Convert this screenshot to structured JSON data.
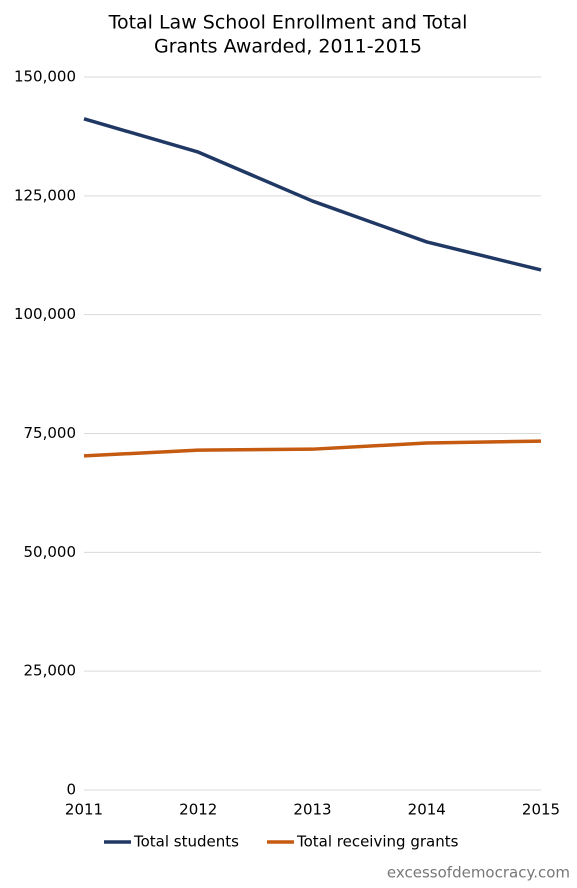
{
  "chart_data": {
    "type": "line",
    "title": [
      "Total Law School Enrollment and Total",
      "Grants Awarded, 2011-2015"
    ],
    "categories": [
      "2011",
      "2012",
      "2013",
      "2014",
      "2015"
    ],
    "series": [
      {
        "name": "Total students",
        "color": "#203864",
        "values": [
          141200,
          134200,
          123900,
          115300,
          109400
        ]
      },
      {
        "name": "Total receiving grants",
        "color": "#c55a11",
        "values": [
          70300,
          71500,
          71700,
          73000,
          73400
        ]
      }
    ],
    "ylim": [
      0,
      150000
    ],
    "yticks": [
      0,
      {
        "value": 25000,
        "label": "25,000"
      },
      {
        "value": 50000,
        "label": "50,000"
      },
      {
        "value": 75000,
        "label": "75,000"
      },
      {
        "value": 100000,
        "label": "100,000"
      },
      {
        "value": 125000,
        "label": "125,000"
      },
      {
        "value": 150000,
        "label": "150,000"
      }
    ],
    "grid": true,
    "legend": "bottom",
    "source": "excessofdemocracy.com"
  }
}
